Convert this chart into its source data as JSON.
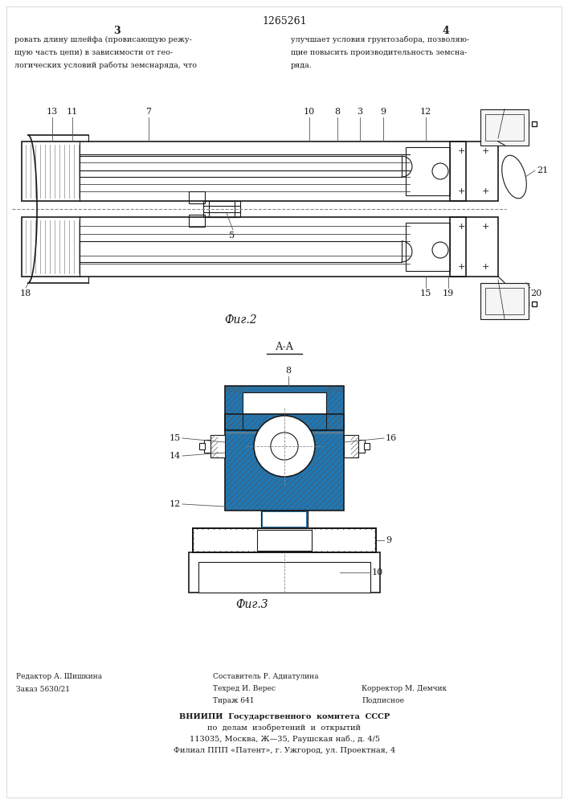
{
  "patent_number": "1265261",
  "col_left": "3",
  "col_right": "4",
  "text_left_lines": [
    "ровать длину шлейфа (провисающую режу-",
    "щую часть цепи) в зависимости от гео-",
    "логических условий работы земснаряда, что"
  ],
  "text_right_lines": [
    "улучшает условия грунтозабора, позволяю-",
    "щие повысить производительность земсна-",
    "ряда."
  ],
  "fig2_caption": "Фиг.2",
  "fig3_caption": "Фиг.3",
  "section_label": "А-А",
  "footer_left_lines": [
    "Редактор А. Шишкина",
    "Заказ 5630/21"
  ],
  "footer_col2_lines": [
    "Составитель Р. Адиатулина",
    "Техред И. Верес",
    "Тираж 641"
  ],
  "footer_col3_lines": [
    "",
    "Корректор М. Демчик",
    "Подписное"
  ],
  "footer_vniiipi": "ВНИИПИ  Государственного  комитета  СССР",
  "footer_line2": "по  делам  изобретений  и  открытий",
  "footer_line3": "113035, Москва, Ж—35, Раушская наб., д. 4/5",
  "footer_line4": "Филиал ППП «Патент», г. Ужгород, ул. Проектная, 4",
  "bg_color": "#ffffff",
  "line_color": "#1a1a1a",
  "text_color": "#000000"
}
